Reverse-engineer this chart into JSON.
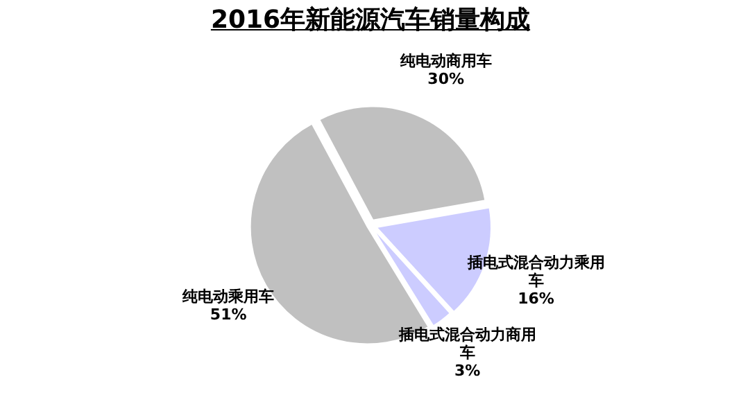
{
  "chart_data": {
    "type": "pie",
    "title": "2016年新能源汽车销量构成",
    "categories": [
      "纯电动商用车",
      "插电式混合动力乘用车",
      "插电式混合动力商用车",
      "纯电动乘用车"
    ],
    "values": [
      30,
      16,
      3,
      51
    ],
    "value_labels": [
      "30%",
      "16%",
      "3%",
      "51%"
    ],
    "colors": [
      "#c0c0c0",
      "#ccccff",
      "#ccccff",
      "#c0c0c0"
    ]
  }
}
